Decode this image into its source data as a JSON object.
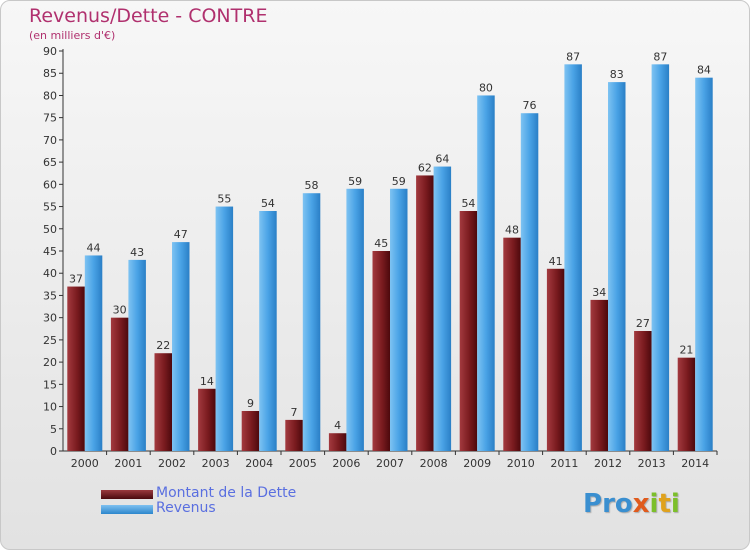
{
  "chart_data": {
    "type": "bar",
    "title": "Revenus/Dette - CONTRE",
    "subtitle": "(en milliers d'€)",
    "categories": [
      "2000",
      "2001",
      "2002",
      "2003",
      "2004",
      "2005",
      "2006",
      "2007",
      "2008",
      "2009",
      "2010",
      "2011",
      "2012",
      "2013",
      "2014"
    ],
    "series": [
      {
        "name": "Montant de la Dette",
        "color": "#7a1b1f",
        "values": [
          37,
          30,
          22,
          14,
          9,
          7,
          4,
          45,
          62,
          54,
          48,
          41,
          34,
          27,
          21
        ]
      },
      {
        "name": "Revenus",
        "color": "#4aa3e6",
        "values": [
          44,
          43,
          47,
          55,
          54,
          58,
          59,
          59,
          64,
          80,
          76,
          87,
          83,
          87,
          84
        ]
      }
    ],
    "ylim": [
      0,
      90
    ],
    "yticks": [
      0,
      5,
      10,
      15,
      20,
      25,
      30,
      35,
      40,
      45,
      50,
      55,
      60,
      65,
      70,
      75,
      80,
      85,
      90
    ],
    "grid": false,
    "legend": "bottom-left"
  },
  "brand": {
    "letters": [
      {
        "char": "P",
        "color": "#3a8fd0"
      },
      {
        "char": "r",
        "color": "#3a8fd0"
      },
      {
        "char": "o",
        "color": "#3a8fd0"
      },
      {
        "char": "x",
        "color": "#e05a1c"
      },
      {
        "char": "i",
        "color": "#7cbf2a"
      },
      {
        "char": "t",
        "color": "#e0a21c"
      },
      {
        "char": "i",
        "color": "#7cbf2a"
      }
    ]
  }
}
